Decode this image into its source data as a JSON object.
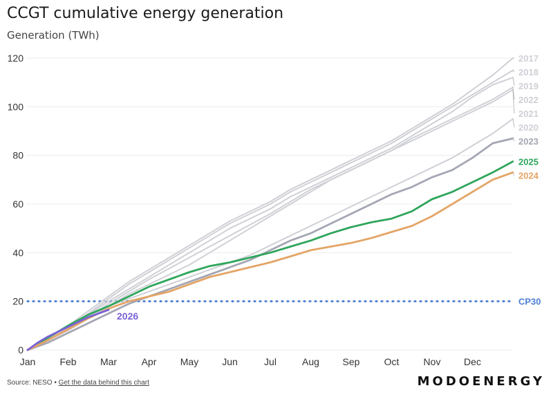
{
  "title": "CCGT cumulative energy generation",
  "subtitle": "Generation (TWh)",
  "source": {
    "prefix": "Source: NESO",
    "separator": "•",
    "link": "Get the data behind this chart"
  },
  "brand": "MODOENERGY",
  "chart_data": {
    "type": "line",
    "title": "CCGT cumulative energy generation",
    "ylabel": "Generation (TWh)",
    "xlabel": "",
    "ylim": [
      0,
      120
    ],
    "xlim": [
      0,
      12
    ],
    "y_ticks": [
      0,
      20,
      40,
      60,
      80,
      100,
      120
    ],
    "y_tick_labels": [
      "0",
      "20",
      "40",
      "60",
      "80",
      "100",
      "120"
    ],
    "x_ticks": [
      0,
      1,
      2,
      3,
      4,
      5,
      6,
      7,
      8,
      9,
      10,
      11
    ],
    "x_tick_labels": [
      "Jan",
      "Feb",
      "Mar",
      "Apr",
      "May",
      "Jun",
      "Jul",
      "Aug",
      "Sep",
      "Oct",
      "Nov",
      "Dec"
    ],
    "grid": "horizontal",
    "series": [
      {
        "name": "2017",
        "color": "#cfd0d6",
        "highlight": false,
        "x": [
          0,
          0.5,
          1,
          1.5,
          2,
          2.5,
          3,
          3.5,
          4,
          4.5,
          5,
          5.5,
          6,
          6.5,
          7,
          7.5,
          8,
          8.5,
          9,
          9.5,
          10,
          10.5,
          11,
          11.5,
          12
        ],
        "values": [
          0,
          5,
          10,
          16,
          22,
          28,
          33,
          38,
          43,
          48,
          53,
          57,
          61,
          66,
          70,
          74,
          78,
          82,
          86,
          91,
          96,
          101,
          107,
          113,
          120
        ]
      },
      {
        "name": "2018",
        "color": "#cfd0d6",
        "highlight": false,
        "x": [
          0,
          0.5,
          1,
          1.5,
          2,
          2.5,
          3,
          3.5,
          4,
          4.5,
          5,
          5.5,
          6,
          6.5,
          7,
          7.5,
          8,
          8.5,
          9,
          9.5,
          10,
          10.5,
          11,
          11.5,
          12
        ],
        "values": [
          0,
          4.5,
          9.5,
          15,
          21,
          27,
          32,
          37,
          42,
          47,
          52,
          56,
          60,
          65,
          69,
          73,
          77,
          81,
          85,
          90,
          95,
          100,
          105,
          110,
          115
        ]
      },
      {
        "name": "2019",
        "color": "#cfd0d6",
        "highlight": false,
        "x": [
          0,
          0.5,
          1,
          1.5,
          2,
          2.5,
          3,
          3.5,
          4,
          4.5,
          5,
          5.5,
          6,
          6.5,
          7,
          7.5,
          8,
          8.5,
          9,
          9.5,
          10,
          10.5,
          11,
          11.5,
          12
        ],
        "values": [
          0,
          4.5,
          9,
          14.5,
          20,
          25,
          30,
          35,
          40,
          45,
          50,
          54,
          58,
          63,
          67,
          71,
          75,
          79,
          83,
          88,
          93,
          98,
          104,
          109,
          112
        ]
      },
      {
        "name": "2022",
        "color": "#cfd0d6",
        "highlight": false,
        "x": [
          0,
          0.5,
          1,
          1.5,
          2,
          2.5,
          3,
          3.5,
          4,
          4.5,
          5,
          5.5,
          6,
          6.5,
          7,
          7.5,
          8,
          8.5,
          9,
          9.5,
          10,
          10.5,
          11,
          11.5,
          12
        ],
        "values": [
          0,
          4,
          8.5,
          13.5,
          19,
          24,
          29,
          33.5,
          38,
          42.5,
          47,
          51.5,
          56,
          61,
          66,
          70,
          74,
          78,
          82,
          87,
          91,
          95,
          99,
          103,
          108
        ]
      },
      {
        "name": "2021",
        "color": "#cfd0d6",
        "highlight": false,
        "x": [
          0,
          0.5,
          1,
          1.5,
          2,
          2.5,
          3,
          3.5,
          4,
          4.5,
          5,
          5.5,
          6,
          6.5,
          7,
          7.5,
          8,
          8.5,
          9,
          9.5,
          10,
          10.5,
          11,
          11.5,
          12
        ],
        "values": [
          0,
          4,
          8,
          13,
          18,
          23,
          27,
          31,
          35,
          40,
          45,
          50,
          55,
          60,
          65,
          70,
          74,
          78,
          82,
          86,
          90,
          94,
          98,
          102,
          107
        ]
      },
      {
        "name": "2020",
        "color": "#cfd0d6",
        "highlight": false,
        "x": [
          0,
          0.5,
          1,
          1.5,
          2,
          2.5,
          3,
          3.5,
          4,
          4.5,
          5,
          5.5,
          6,
          6.5,
          7,
          7.5,
          8,
          8.5,
          9,
          9.5,
          10,
          10.5,
          11,
          11.5,
          12
        ],
        "values": [
          0,
          4,
          9,
          14,
          18,
          21,
          24,
          27,
          30,
          33,
          36,
          39,
          43,
          47,
          51,
          55,
          59,
          63,
          67,
          71,
          75,
          79,
          84,
          89,
          95
        ]
      },
      {
        "name": "2023",
        "color": "#a4a6b3",
        "highlight": true,
        "x": [
          0,
          0.5,
          1,
          1.5,
          2,
          2.5,
          3,
          3.5,
          4,
          4.5,
          5,
          5.5,
          6,
          6.5,
          7,
          7.5,
          8,
          8.5,
          9,
          9.5,
          10,
          10.5,
          11,
          11.5,
          12
        ],
        "values": [
          0,
          3,
          7,
          11,
          15,
          19,
          22,
          25,
          28,
          31,
          34,
          37,
          41,
          45,
          48,
          52,
          56,
          60,
          64,
          67,
          71,
          74,
          79,
          85,
          87
        ]
      },
      {
        "name": "2025",
        "color": "#2ea55b",
        "highlight": true,
        "x": [
          0,
          0.5,
          1,
          1.5,
          2,
          2.5,
          3,
          3.5,
          4,
          4.5,
          5,
          5.5,
          6,
          6.5,
          7,
          7.5,
          8,
          8.5,
          9,
          9.5,
          10,
          10.5,
          11,
          11.5,
          12
        ],
        "values": [
          0,
          5,
          10,
          14.5,
          18,
          22,
          26,
          29,
          32,
          34.5,
          36,
          38,
          40,
          42.5,
          45,
          48,
          50.5,
          52.5,
          54,
          57,
          62,
          65,
          69,
          73,
          77.5
        ]
      },
      {
        "name": "2024",
        "color": "#e4a465",
        "highlight": true,
        "x": [
          0,
          0.5,
          1,
          1.5,
          2,
          2.5,
          3,
          3.5,
          4,
          4.5,
          5,
          5.5,
          6,
          6.5,
          7,
          7.5,
          8,
          8.5,
          9,
          9.5,
          10,
          10.5,
          11,
          11.5,
          12
        ],
        "values": [
          0,
          4,
          8.5,
          13,
          17,
          20,
          22,
          24,
          27,
          30,
          32,
          34,
          36,
          38.5,
          41,
          42.5,
          44,
          46,
          48.5,
          51,
          55,
          60,
          65,
          70,
          73
        ]
      },
      {
        "name": "2026",
        "color": "#7b61d6",
        "highlight": true,
        "x": [
          0,
          0.25,
          0.5,
          0.75,
          1,
          1.25,
          1.5,
          1.75,
          2
        ],
        "values": [
          0,
          3,
          5.5,
          7.5,
          9.5,
          11.5,
          13.5,
          15,
          16.5
        ]
      }
    ],
    "reference_lines": [
      {
        "name": "CP30",
        "value": 20,
        "color": "#4d7fd4"
      }
    ]
  }
}
